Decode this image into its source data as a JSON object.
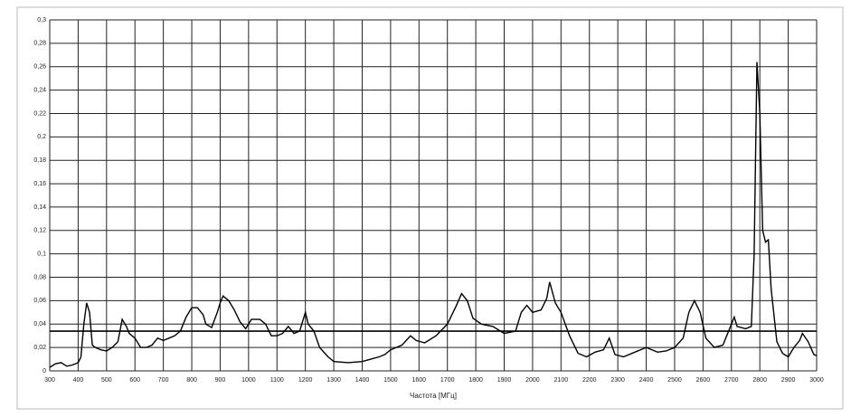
{
  "chart_data": {
    "type": "line",
    "x_label": "Частота [МГц]",
    "x": [
      300,
      320,
      340,
      360,
      380,
      400,
      410,
      420,
      430,
      440,
      450,
      460,
      480,
      500,
      520,
      540,
      555,
      570,
      580,
      600,
      620,
      640,
      660,
      680,
      700,
      720,
      740,
      760,
      780,
      800,
      820,
      840,
      850,
      870,
      890,
      900,
      910,
      930,
      950,
      970,
      990,
      1010,
      1040,
      1060,
      1080,
      1100,
      1120,
      1140,
      1160,
      1180,
      1200,
      1210,
      1230,
      1250,
      1280,
      1300,
      1350,
      1400,
      1430,
      1460,
      1480,
      1500,
      1540,
      1570,
      1590,
      1620,
      1660,
      1700,
      1730,
      1750,
      1770,
      1790,
      1820,
      1860,
      1900,
      1940,
      1960,
      1980,
      2000,
      2030,
      2050,
      2060,
      2080,
      2100,
      2130,
      2160,
      2190,
      2220,
      2250,
      2270,
      2290,
      2320,
      2360,
      2400,
      2440,
      2470,
      2500,
      2530,
      2550,
      2570,
      2590,
      2610,
      2640,
      2670,
      2700,
      2710,
      2720,
      2750,
      2770,
      2780,
      2790,
      2800,
      2810,
      2820,
      2830,
      2840,
      2860,
      2880,
      2900,
      2920,
      2940,
      2950,
      2970,
      2990,
      3000
    ],
    "values": [
      0.003,
      0.006,
      0.007,
      0.004,
      0.005,
      0.007,
      0.012,
      0.04,
      0.058,
      0.05,
      0.022,
      0.02,
      0.018,
      0.017,
      0.02,
      0.025,
      0.044,
      0.038,
      0.032,
      0.028,
      0.02,
      0.02,
      0.022,
      0.028,
      0.026,
      0.028,
      0.03,
      0.034,
      0.046,
      0.054,
      0.054,
      0.048,
      0.04,
      0.037,
      0.05,
      0.058,
      0.064,
      0.06,
      0.052,
      0.042,
      0.036,
      0.044,
      0.044,
      0.04,
      0.03,
      0.03,
      0.032,
      0.038,
      0.032,
      0.034,
      0.05,
      0.04,
      0.034,
      0.02,
      0.012,
      0.008,
      0.007,
      0.008,
      0.01,
      0.012,
      0.014,
      0.018,
      0.022,
      0.03,
      0.026,
      0.024,
      0.03,
      0.04,
      0.055,
      0.066,
      0.06,
      0.045,
      0.04,
      0.038,
      0.032,
      0.034,
      0.05,
      0.056,
      0.05,
      0.052,
      0.062,
      0.076,
      0.058,
      0.05,
      0.03,
      0.015,
      0.012,
      0.016,
      0.018,
      0.028,
      0.014,
      0.012,
      0.016,
      0.02,
      0.016,
      0.017,
      0.02,
      0.028,
      0.05,
      0.06,
      0.05,
      0.028,
      0.02,
      0.022,
      0.04,
      0.046,
      0.038,
      0.036,
      0.038,
      0.1,
      0.264,
      0.22,
      0.12,
      0.11,
      0.112,
      0.07,
      0.025,
      0.015,
      0.012,
      0.02,
      0.026,
      0.032,
      0.025,
      0.014,
      0.013
    ],
    "color": "#000000",
    "reference_line": 0.034,
    "xlim": [
      300,
      3000
    ],
    "xticks": [
      300,
      400,
      500,
      600,
      700,
      800,
      900,
      1000,
      1100,
      1200,
      1300,
      1400,
      1500,
      1600,
      1700,
      1800,
      1900,
      2000,
      2100,
      2200,
      2300,
      2400,
      2500,
      2600,
      2700,
      2800,
      2900,
      3000
    ],
    "ylim": [
      0,
      0.3
    ],
    "yticks": [
      {
        "value": 0,
        "label": "0"
      },
      {
        "value": 0.02,
        "label": "0,02"
      },
      {
        "value": 0.04,
        "label": "0,04"
      },
      {
        "value": 0.06,
        "label": "0,06"
      },
      {
        "value": 0.08,
        "label": "0,08"
      },
      {
        "value": 0.1,
        "label": "0,1"
      },
      {
        "value": 0.12,
        "label": "0,12"
      },
      {
        "value": 0.14,
        "label": "0,14"
      },
      {
        "value": 0.16,
        "label": "0,16"
      },
      {
        "value": 0.18,
        "label": "0,18"
      },
      {
        "value": 0.2,
        "label": "0,2"
      },
      {
        "value": 0.22,
        "label": "0,22"
      },
      {
        "value": 0.24,
        "label": "0,24"
      },
      {
        "value": 0.26,
        "label": "0,26"
      },
      {
        "value": 0.28,
        "label": "0,28"
      },
      {
        "value": 0.3,
        "label": "0,3"
      }
    ],
    "grid": true
  }
}
